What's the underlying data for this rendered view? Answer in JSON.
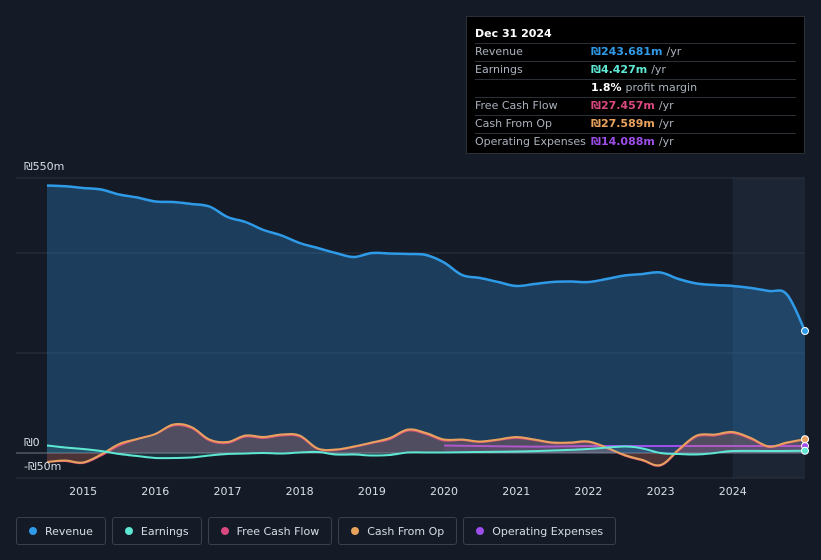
{
  "colors": {
    "revenue": "#2f9be8",
    "earnings": "#5ee8d4",
    "free_cash_flow": "#d9487e",
    "cash_from_op": "#e8a25e",
    "operating_expenses": "#9d4ee8"
  },
  "tooltip": {
    "date": "Dec 31 2024",
    "rows": [
      {
        "label": "Revenue",
        "value": "₪243.681m",
        "unit": "/yr",
        "color": "#2f9be8"
      },
      {
        "label": "Earnings",
        "value": "₪4.427m",
        "unit": "/yr",
        "color": "#5ee8d4"
      },
      {
        "label": "",
        "value": "1.8%",
        "unit": "profit margin",
        "color": "#ffffff"
      },
      {
        "label": "Free Cash Flow",
        "value": "₪27.457m",
        "unit": "/yr",
        "color": "#d9487e"
      },
      {
        "label": "Cash From Op",
        "value": "₪27.589m",
        "unit": "/yr",
        "color": "#e8a25e"
      },
      {
        "label": "Operating Expenses",
        "value": "₪14.088m",
        "unit": "/yr",
        "color": "#9d4ee8"
      }
    ]
  },
  "legend": [
    {
      "label": "Revenue",
      "color": "#2f9be8"
    },
    {
      "label": "Earnings",
      "color": "#5ee8d4"
    },
    {
      "label": "Free Cash Flow",
      "color": "#d9487e"
    },
    {
      "label": "Cash From Op",
      "color": "#e8a25e"
    },
    {
      "label": "Operating Expenses",
      "color": "#9d4ee8"
    }
  ],
  "chart_data": {
    "type": "area",
    "title": "",
    "xlabel": "",
    "ylabel": "",
    "xlim": [
      2014.5,
      2025.0
    ],
    "ylim": [
      -50,
      550
    ],
    "y_tick_labels": [
      "₪550m",
      "₪0",
      "-₪50m"
    ],
    "x_tick_labels": [
      "2015",
      "2016",
      "2017",
      "2018",
      "2019",
      "2020",
      "2021",
      "2022",
      "2023",
      "2024"
    ],
    "x_ticks": [
      2015,
      2016,
      2017,
      2018,
      2019,
      2020,
      2021,
      2022,
      2023,
      2024
    ],
    "highlight_from": 2024.0,
    "series": [
      {
        "name": "Revenue",
        "key": "revenue",
        "points": [
          [
            2014.5,
            535
          ],
          [
            2014.8,
            533
          ],
          [
            2015.0,
            530
          ],
          [
            2015.25,
            527
          ],
          [
            2015.5,
            517
          ],
          [
            2015.75,
            511
          ],
          [
            2016.0,
            503
          ],
          [
            2016.25,
            502
          ],
          [
            2016.5,
            498
          ],
          [
            2016.75,
            493
          ],
          [
            2017.0,
            472
          ],
          [
            2017.25,
            462
          ],
          [
            2017.5,
            446
          ],
          [
            2017.75,
            435
          ],
          [
            2018.0,
            420
          ],
          [
            2018.25,
            410
          ],
          [
            2018.5,
            400
          ],
          [
            2018.75,
            392
          ],
          [
            2019.0,
            400
          ],
          [
            2019.25,
            399
          ],
          [
            2019.5,
            398
          ],
          [
            2019.75,
            396
          ],
          [
            2020.0,
            381
          ],
          [
            2020.25,
            356
          ],
          [
            2020.5,
            350
          ],
          [
            2020.75,
            342
          ],
          [
            2021.0,
            334
          ],
          [
            2021.25,
            338
          ],
          [
            2021.5,
            342
          ],
          [
            2021.75,
            343
          ],
          [
            2022.0,
            342
          ],
          [
            2022.25,
            348
          ],
          [
            2022.5,
            355
          ],
          [
            2022.75,
            358
          ],
          [
            2023.0,
            361
          ],
          [
            2023.25,
            348
          ],
          [
            2023.5,
            339
          ],
          [
            2023.75,
            336
          ],
          [
            2024.0,
            334
          ],
          [
            2024.25,
            330
          ],
          [
            2024.5,
            324
          ],
          [
            2024.75,
            317
          ],
          [
            2025.0,
            244
          ]
        ]
      },
      {
        "name": "Earnings",
        "key": "earnings",
        "points": [
          [
            2014.5,
            15
          ],
          [
            2014.75,
            11
          ],
          [
            2015.0,
            8
          ],
          [
            2015.25,
            4
          ],
          [
            2015.5,
            -2
          ],
          [
            2015.75,
            -6
          ],
          [
            2016.0,
            -10
          ],
          [
            2016.25,
            -10
          ],
          [
            2016.5,
            -9
          ],
          [
            2016.75,
            -5
          ],
          [
            2017.0,
            -2
          ],
          [
            2017.25,
            -1
          ],
          [
            2017.5,
            0
          ],
          [
            2017.75,
            -1
          ],
          [
            2018.0,
            1
          ],
          [
            2018.25,
            2
          ],
          [
            2018.5,
            -3
          ],
          [
            2018.75,
            -3
          ],
          [
            2019.0,
            -5
          ],
          [
            2019.25,
            -4
          ],
          [
            2019.5,
            1
          ],
          [
            2019.75,
            1
          ],
          [
            2020.0,
            1
          ],
          [
            2020.5,
            2
          ],
          [
            2021.0,
            3
          ],
          [
            2021.5,
            5
          ],
          [
            2022.0,
            8
          ],
          [
            2022.5,
            13
          ],
          [
            2022.75,
            9
          ],
          [
            2023.0,
            0
          ],
          [
            2023.25,
            -2
          ],
          [
            2023.5,
            -3
          ],
          [
            2023.75,
            0
          ],
          [
            2024.0,
            4
          ],
          [
            2024.5,
            4
          ],
          [
            2025.0,
            4.4
          ]
        ]
      },
      {
        "name": "Free Cash Flow",
        "key": "free_cash_flow",
        "points": [
          [
            2014.5,
            -18
          ],
          [
            2014.75,
            -16
          ],
          [
            2015.0,
            -20
          ],
          [
            2015.25,
            -5
          ],
          [
            2015.5,
            15
          ],
          [
            2015.75,
            28
          ],
          [
            2016.0,
            38
          ],
          [
            2016.25,
            55
          ],
          [
            2016.5,
            50
          ],
          [
            2016.75,
            25
          ],
          [
            2017.0,
            20
          ],
          [
            2017.25,
            33
          ],
          [
            2017.5,
            30
          ],
          [
            2017.75,
            35
          ],
          [
            2018.0,
            33
          ],
          [
            2018.25,
            8
          ],
          [
            2018.5,
            6
          ],
          [
            2018.75,
            12
          ],
          [
            2019.0,
            20
          ],
          [
            2019.25,
            28
          ],
          [
            2019.5,
            45
          ],
          [
            2019.75,
            38
          ],
          [
            2020.0,
            25
          ],
          [
            2020.25,
            26
          ],
          [
            2020.5,
            22
          ],
          [
            2020.75,
            26
          ],
          [
            2021.0,
            30
          ],
          [
            2021.25,
            26
          ],
          [
            2021.5,
            20
          ],
          [
            2021.75,
            20
          ],
          [
            2022.0,
            22
          ],
          [
            2022.25,
            10
          ],
          [
            2022.5,
            -5
          ],
          [
            2022.75,
            -15
          ],
          [
            2023.0,
            -25
          ],
          [
            2023.25,
            5
          ],
          [
            2023.5,
            33
          ],
          [
            2023.75,
            35
          ],
          [
            2024.0,
            40
          ],
          [
            2024.25,
            28
          ],
          [
            2024.5,
            12
          ],
          [
            2024.75,
            20
          ],
          [
            2025.0,
            27.5
          ]
        ]
      },
      {
        "name": "Cash From Op",
        "key": "cash_from_op",
        "points": [
          [
            2014.5,
            -18
          ],
          [
            2014.75,
            -15
          ],
          [
            2015.0,
            -19
          ],
          [
            2015.25,
            -3
          ],
          [
            2015.5,
            18
          ],
          [
            2015.75,
            28
          ],
          [
            2016.0,
            38
          ],
          [
            2016.25,
            57
          ],
          [
            2016.5,
            52
          ],
          [
            2016.75,
            27
          ],
          [
            2017.0,
            22
          ],
          [
            2017.25,
            35
          ],
          [
            2017.5,
            32
          ],
          [
            2017.75,
            37
          ],
          [
            2018.0,
            35
          ],
          [
            2018.25,
            9
          ],
          [
            2018.5,
            7
          ],
          [
            2018.75,
            13
          ],
          [
            2019.0,
            21
          ],
          [
            2019.25,
            30
          ],
          [
            2019.5,
            47
          ],
          [
            2019.75,
            40
          ],
          [
            2020.0,
            27
          ],
          [
            2020.25,
            27
          ],
          [
            2020.5,
            23
          ],
          [
            2020.75,
            27
          ],
          [
            2021.0,
            32
          ],
          [
            2021.25,
            27
          ],
          [
            2021.5,
            21
          ],
          [
            2021.75,
            21
          ],
          [
            2022.0,
            23
          ],
          [
            2022.25,
            11
          ],
          [
            2022.5,
            -4
          ],
          [
            2022.75,
            -14
          ],
          [
            2023.0,
            -24
          ],
          [
            2023.25,
            7
          ],
          [
            2023.5,
            35
          ],
          [
            2023.75,
            37
          ],
          [
            2024.0,
            42
          ],
          [
            2024.25,
            30
          ],
          [
            2024.5,
            13
          ],
          [
            2024.75,
            21
          ],
          [
            2025.0,
            27.6
          ]
        ]
      },
      {
        "name": "Operating Expenses",
        "key": "operating_expenses",
        "points": [
          [
            2020.0,
            15
          ],
          [
            2020.5,
            14
          ],
          [
            2021.0,
            13
          ],
          [
            2021.5,
            13
          ],
          [
            2022.0,
            14
          ],
          [
            2022.5,
            14
          ],
          [
            2023.0,
            14
          ],
          [
            2023.5,
            14
          ],
          [
            2024.0,
            14
          ],
          [
            2024.5,
            14
          ],
          [
            2025.0,
            14.1
          ]
        ]
      }
    ]
  }
}
